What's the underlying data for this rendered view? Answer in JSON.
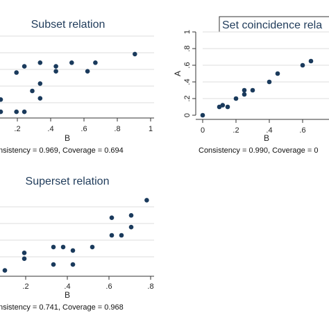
{
  "chart_data": [
    {
      "type": "scatter",
      "title": "Subset relation",
      "xlabel": "B",
      "ylabel": "",
      "xticks": [
        ".2",
        ".4",
        ".6",
        ".8",
        "1"
      ],
      "xlim": [
        0.05,
        1.0
      ],
      "ylim": [
        0,
        0.7
      ],
      "note": "nsistency = 0.969, Coverage = 0.694",
      "points": [
        [
          0.05,
          0.15
        ],
        [
          0.05,
          0.05
        ],
        [
          0.15,
          0.05
        ],
        [
          0.15,
          0.37
        ],
        [
          0.2,
          0.05
        ],
        [
          0.2,
          0.42
        ],
        [
          0.25,
          0.22
        ],
        [
          0.3,
          0.16
        ],
        [
          0.3,
          0.28
        ],
        [
          0.3,
          0.45
        ],
        [
          0.4,
          0.38
        ],
        [
          0.4,
          0.42
        ],
        [
          0.5,
          0.45
        ],
        [
          0.6,
          0.38
        ],
        [
          0.65,
          0.45
        ],
        [
          0.9,
          0.52
        ]
      ]
    },
    {
      "type": "scatter",
      "title": "Set coincidence rela",
      "xlabel": "B",
      "ylabel": "A",
      "xticks": [
        "0",
        ".2",
        ".4",
        ".6"
      ],
      "yticks": [
        "0",
        ".2",
        ".4",
        ".6",
        ".8",
        "1"
      ],
      "xlim": [
        0,
        0.75
      ],
      "ylim": [
        0,
        1.0
      ],
      "note": "Consistency = 0.990, Coverage = 0",
      "points": [
        [
          0.0,
          0.0
        ],
        [
          0.1,
          0.1
        ],
        [
          0.12,
          0.12
        ],
        [
          0.15,
          0.1
        ],
        [
          0.2,
          0.2
        ],
        [
          0.25,
          0.25
        ],
        [
          0.25,
          0.3
        ],
        [
          0.3,
          0.3
        ],
        [
          0.4,
          0.4
        ],
        [
          0.45,
          0.5
        ],
        [
          0.6,
          0.6
        ],
        [
          0.65,
          0.65
        ]
      ]
    },
    {
      "type": "scatter",
      "title": "Superset relation",
      "xlabel": "B",
      "ylabel": "",
      "xticks": [
        ".2",
        ".4",
        ".6",
        ".8"
      ],
      "xlim": [
        0.05,
        0.8
      ],
      "ylim": [
        0,
        0.7
      ],
      "note": "nsistency = 0.741, Coverage = 0.968",
      "points": [
        [
          0.05,
          0.05
        ],
        [
          0.15,
          0.15
        ],
        [
          0.15,
          0.2
        ],
        [
          0.3,
          0.25
        ],
        [
          0.3,
          0.1
        ],
        [
          0.35,
          0.25
        ],
        [
          0.4,
          0.22
        ],
        [
          0.4,
          0.1
        ],
        [
          0.5,
          0.25
        ],
        [
          0.6,
          0.35
        ],
        [
          0.6,
          0.5
        ],
        [
          0.65,
          0.35
        ],
        [
          0.7,
          0.42
        ],
        [
          0.7,
          0.52
        ],
        [
          0.78,
          0.65
        ]
      ]
    }
  ]
}
